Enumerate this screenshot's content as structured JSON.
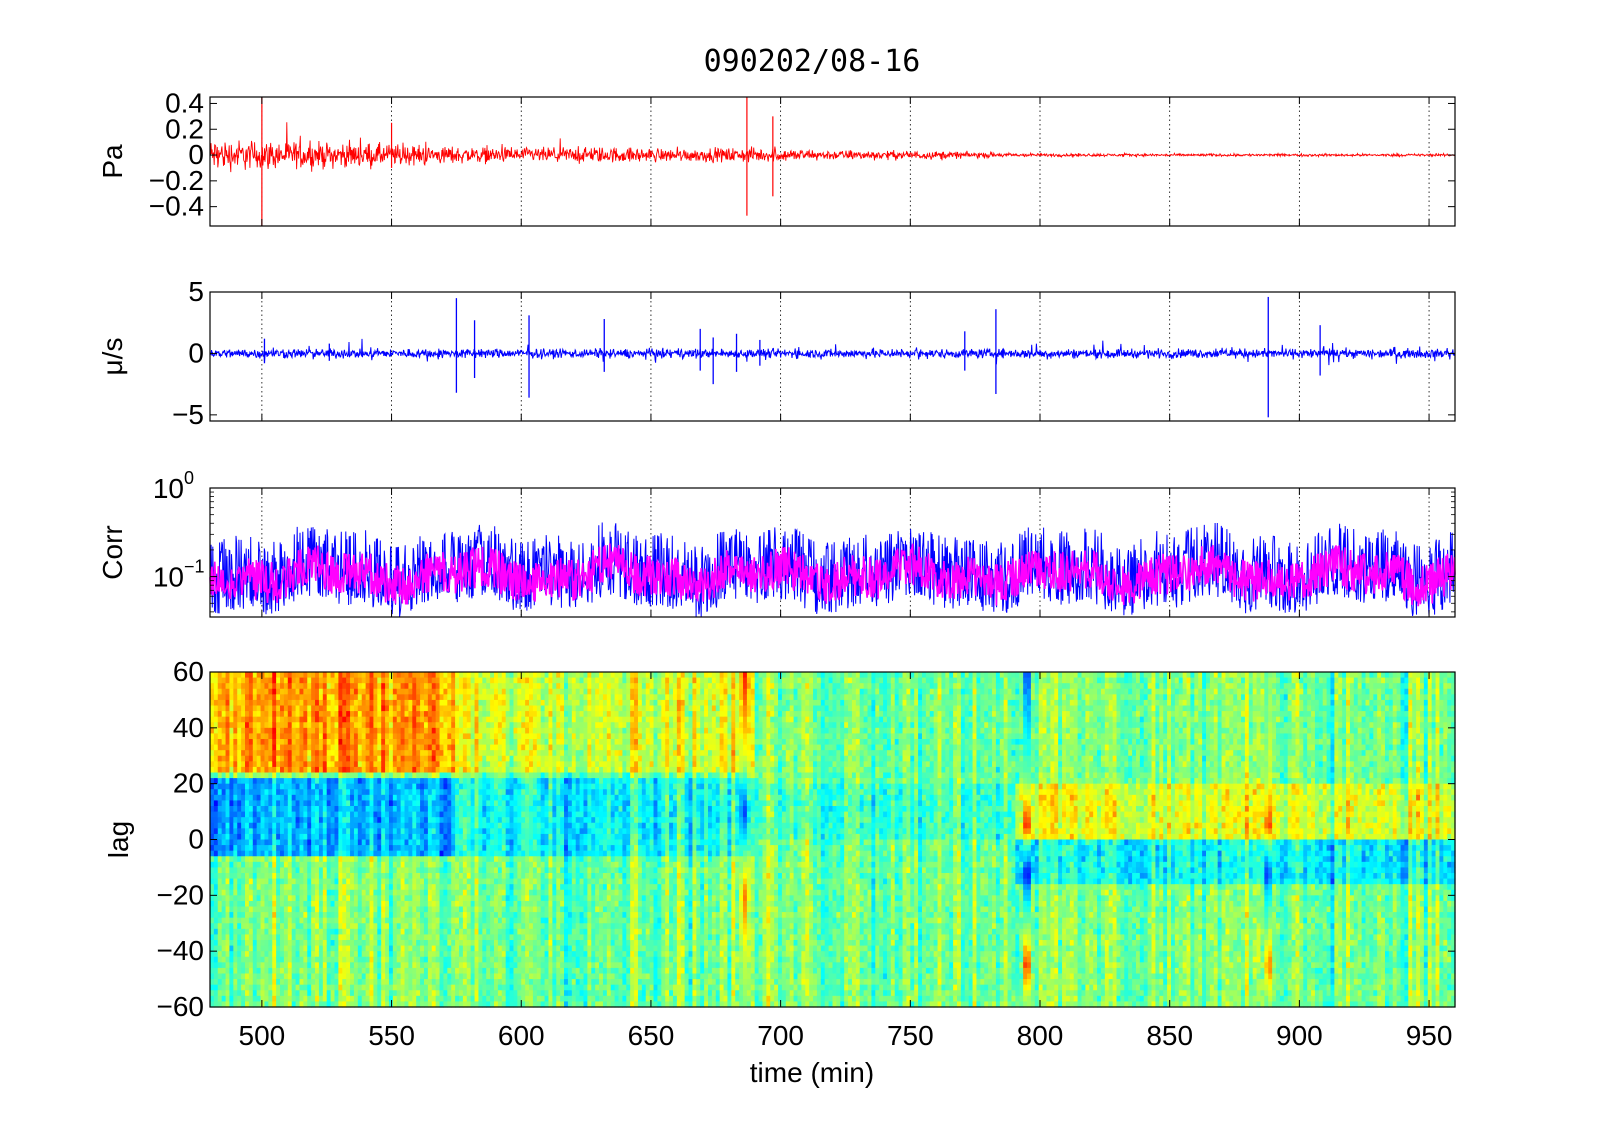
{
  "chart_data": [
    {
      "id": "pressure",
      "type": "line",
      "title": "090202/08-16",
      "ylabel": "Pa",
      "xlim": [
        480,
        960
      ],
      "ylim": [
        -0.55,
        0.45
      ],
      "xticks": [
        500,
        550,
        600,
        650,
        700,
        750,
        800,
        850,
        900,
        950
      ],
      "yticks": [
        0.4,
        0.2,
        0,
        -0.2,
        -0.4
      ],
      "ytick_labels": [
        "0.4",
        "0.2",
        "0",
        "−0.2",
        "−0.4"
      ],
      "xtick_labels_shown": false,
      "grid": "x-dotted",
      "series": [
        {
          "color": "#ff0000",
          "envelope": {
            "x": [
              480,
              500,
              520,
              550,
              580,
              600,
              630,
              660,
              690,
              720,
              760,
              790,
              800,
              850,
              900,
              960
            ],
            "amp": [
              0.1,
              0.09,
              0.08,
              0.07,
              0.05,
              0.045,
              0.05,
              0.04,
              0.045,
              0.03,
              0.025,
              0.012,
              0.01,
              0.008,
              0.008,
              0.008
            ]
          },
          "spikes": [
            {
              "x": 500,
              "ymin": -0.55,
              "ymax": 0.45
            },
            {
              "x": 550,
              "ymin": -0.1,
              "ymax": 0.25
            },
            {
              "x": 687,
              "ymin": -0.47,
              "ymax": 0.45
            },
            {
              "x": 697,
              "ymin": -0.32,
              "ymax": 0.3
            }
          ]
        }
      ]
    },
    {
      "id": "velocity",
      "type": "line",
      "ylabel": "μ/s",
      "xlim": [
        480,
        960
      ],
      "ylim": [
        -5.5,
        5
      ],
      "xticks": [
        500,
        550,
        600,
        650,
        700,
        750,
        800,
        850,
        900,
        950
      ],
      "yticks": [
        5,
        0,
        -5
      ],
      "ytick_labels": [
        "5",
        "0",
        "−5"
      ],
      "xtick_labels_shown": false,
      "grid": "x-dotted",
      "series": [
        {
          "color": "#0000ff",
          "baseline_amp": 0.3,
          "spikes": [
            {
              "x": 575,
              "ymin": -3.2,
              "ymax": 4.5
            },
            {
              "x": 582,
              "ymin": -2.0,
              "ymax": 2.7
            },
            {
              "x": 603,
              "ymin": -3.6,
              "ymax": 3.1
            },
            {
              "x": 632,
              "ymin": -1.5,
              "ymax": 2.8
            },
            {
              "x": 669,
              "ymin": -1.4,
              "ymax": 2.0
            },
            {
              "x": 674,
              "ymin": -2.5,
              "ymax": 1.3
            },
            {
              "x": 683,
              "ymin": -1.5,
              "ymax": 1.6
            },
            {
              "x": 692,
              "ymin": -1.0,
              "ymax": 1.1
            },
            {
              "x": 783,
              "ymin": -3.3,
              "ymax": 3.6
            },
            {
              "x": 771,
              "ymin": -1.4,
              "ymax": 1.8
            },
            {
              "x": 888,
              "ymin": -5.2,
              "ymax": 4.6
            },
            {
              "x": 908,
              "ymin": -1.8,
              "ymax": 2.3
            },
            {
              "x": 501,
              "ymin": -0.8,
              "ymax": 1.2
            },
            {
              "x": 526,
              "ymin": -0.6,
              "ymax": 0.8
            }
          ]
        }
      ]
    },
    {
      "id": "correlation",
      "type": "line",
      "ylabel": "Corr",
      "yscale": "log",
      "xlim": [
        480,
        960
      ],
      "ylim": [
        0.035,
        1
      ],
      "xticks": [
        500,
        550,
        600,
        650,
        700,
        750,
        800,
        850,
        900,
        950
      ],
      "yticks": [
        1,
        0.1
      ],
      "ytick_labels": [
        {
          "base": "10",
          "exp": "0"
        },
        {
          "base": "10",
          "exp": "−1"
        }
      ],
      "xtick_labels_shown": false,
      "grid": "x-dotted",
      "series": [
        {
          "color": "#0000ff",
          "level": 0.1,
          "spread": [
            0.045,
            0.32
          ]
        },
        {
          "color": "#ff00ff",
          "level": 0.1,
          "spread": [
            0.06,
            0.18
          ]
        }
      ]
    },
    {
      "id": "lag",
      "type": "heatmap",
      "ylabel": "lag",
      "xlabel": "time (min)",
      "xlim": [
        480,
        960
      ],
      "ylim": [
        -60,
        60
      ],
      "xticks": [
        500,
        550,
        600,
        650,
        700,
        750,
        800,
        850,
        900,
        950
      ],
      "yticks": [
        60,
        40,
        20,
        0,
        -20,
        -40,
        -60
      ],
      "ytick_labels": [
        "60",
        "40",
        "20",
        "0",
        "−20",
        "−40",
        "−60"
      ],
      "colormap": "jet",
      "features": [
        {
          "x_range": [
            480,
            575
          ],
          "lag_range": [
            25,
            60
          ],
          "level": 0.72
        },
        {
          "x_range": [
            480,
            575
          ],
          "lag_range": [
            -5,
            22
          ],
          "level": 0.3
        },
        {
          "x_range": [
            575,
            690
          ],
          "lag_range": [
            25,
            60
          ],
          "level": 0.6
        },
        {
          "x_range": [
            575,
            690
          ],
          "lag_range": [
            -5,
            22
          ],
          "level": 0.4
        },
        {
          "x_range": [
            790,
            960
          ],
          "lag_range": [
            0,
            20
          ],
          "level": 0.6
        },
        {
          "x_range": [
            790,
            960
          ],
          "lag_range": [
            -15,
            0
          ],
          "level": 0.38
        }
      ],
      "event_lines": [
        {
          "x": 795,
          "profile": [
            [
              60,
              0.1
            ],
            [
              20,
              0.5
            ],
            [
              5,
              0.95
            ],
            [
              0,
              0.6
            ],
            [
              -12,
              0.05
            ],
            [
              -30,
              0.5
            ],
            [
              -45,
              0.95
            ],
            [
              -60,
              0.5
            ]
          ]
        },
        {
          "x": 888,
          "profile": [
            [
              60,
              0.5
            ],
            [
              20,
              0.6
            ],
            [
              5,
              0.9
            ],
            [
              0,
              0.6
            ],
            [
              -12,
              0.15
            ],
            [
              -30,
              0.5
            ],
            [
              -45,
              0.85
            ],
            [
              -60,
              0.5
            ]
          ]
        },
        {
          "x": 686,
          "profile": [
            [
              60,
              0.9
            ],
            [
              30,
              0.6
            ],
            [
              10,
              0.15
            ],
            [
              -20,
              0.8
            ],
            [
              -40,
              0.6
            ],
            [
              -60,
              0.5
            ]
          ]
        }
      ]
    }
  ]
}
